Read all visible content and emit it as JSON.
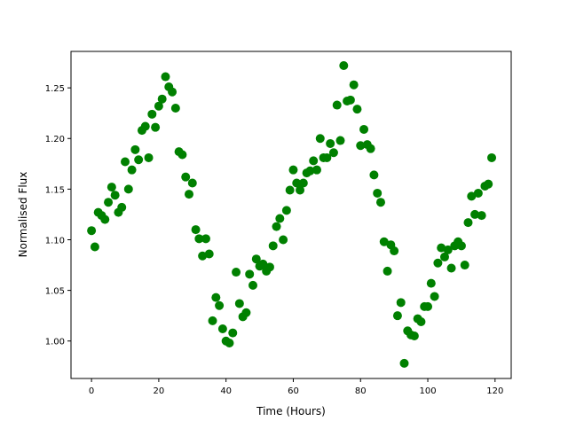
{
  "chart_data": {
    "type": "scatter",
    "title": "",
    "xlabel": "Time (Hours)",
    "ylabel": "Normalised Flux",
    "xlim": [
      -6.1,
      124.8
    ],
    "ylim": [
      0.963,
      1.286
    ],
    "xticks": [
      0,
      20,
      40,
      60,
      80,
      100,
      120
    ],
    "yticks": [
      1.0,
      1.05,
      1.1,
      1.15,
      1.2,
      1.25
    ],
    "xtick_labels": [
      "0",
      "20",
      "40",
      "60",
      "80",
      "100",
      "120"
    ],
    "ytick_labels": [
      "1.00",
      "1.05",
      "1.10",
      "1.15",
      "1.20",
      "1.25"
    ],
    "grid": false,
    "marker_color": "#008000",
    "x": [
      0,
      1,
      2,
      3,
      4,
      5,
      6,
      7,
      8,
      9,
      10,
      11,
      12,
      13,
      14,
      15,
      16,
      17,
      18,
      19,
      20,
      21,
      22,
      23,
      24,
      25,
      26,
      27,
      28,
      29,
      30,
      31,
      32,
      33,
      34,
      35,
      36,
      37,
      38,
      39,
      40,
      41,
      42,
      43,
      44,
      45,
      46,
      47,
      48,
      49,
      50,
      51,
      52,
      53,
      54,
      55,
      56,
      57,
      58,
      59,
      60,
      61,
      62,
      63,
      64,
      65,
      66,
      67,
      68,
      69,
      70,
      71,
      72,
      73,
      74,
      75,
      76,
      77,
      78,
      79,
      80,
      81,
      82,
      83,
      84,
      85,
      86,
      87,
      88,
      89,
      90,
      91,
      92,
      93,
      94,
      95,
      96,
      97,
      98,
      99,
      100,
      101,
      102,
      103,
      104,
      105,
      106,
      107,
      108,
      109,
      110,
      111,
      112,
      113,
      114,
      115,
      116,
      117,
      118,
      119
    ],
    "y": [
      1.109,
      1.093,
      1.127,
      1.124,
      1.12,
      1.137,
      1.152,
      1.144,
      1.127,
      1.132,
      1.177,
      1.15,
      1.169,
      1.189,
      1.179,
      1.208,
      1.212,
      1.181,
      1.224,
      1.211,
      1.232,
      1.239,
      1.261,
      1.251,
      1.246,
      1.23,
      1.187,
      1.184,
      1.162,
      1.145,
      1.156,
      1.11,
      1.101,
      1.084,
      1.101,
      1.086,
      1.02,
      1.043,
      1.035,
      1.012,
      1.0,
      0.998,
      1.008,
      1.068,
      1.037,
      1.024,
      1.028,
      1.066,
      1.055,
      1.081,
      1.074,
      1.076,
      1.069,
      1.073,
      1.094,
      1.113,
      1.121,
      1.1,
      1.129,
      1.149,
      1.169,
      1.156,
      1.149,
      1.156,
      1.166,
      1.168,
      1.178,
      1.169,
      1.2,
      1.181,
      1.181,
      1.195,
      1.186,
      1.233,
      1.198,
      1.272,
      1.237,
      1.238,
      1.253,
      1.229,
      1.193,
      1.209,
      1.194,
      1.19,
      1.164,
      1.146,
      1.137,
      1.098,
      1.069,
      1.095,
      1.089,
      1.025,
      1.038,
      0.978,
      1.01,
      1.006,
      1.005,
      1.022,
      1.019,
      1.034,
      1.034,
      1.057,
      1.044,
      1.077,
      1.092,
      1.083,
      1.09,
      1.072,
      1.094,
      1.098,
      1.094,
      1.075,
      1.117,
      1.143,
      1.125,
      1.146,
      1.124,
      1.153,
      1.155,
      1.181
    ]
  }
}
